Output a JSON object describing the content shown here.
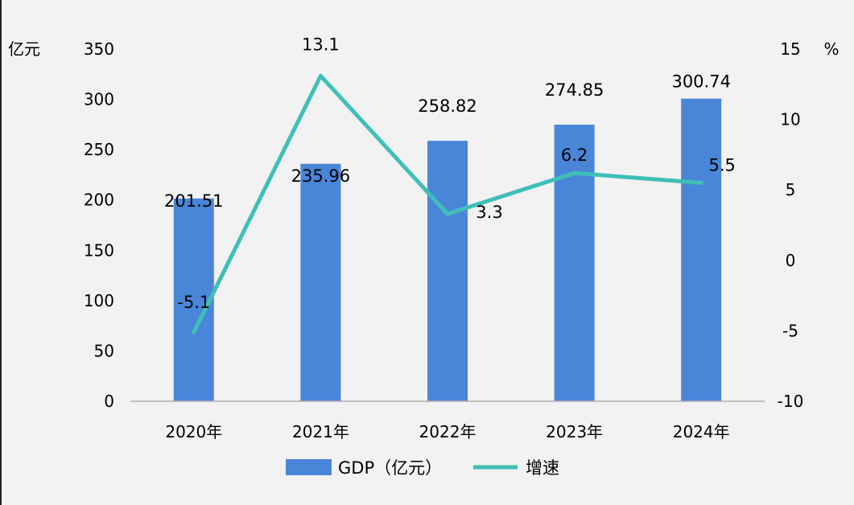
{
  "chart_data": {
    "type": "bar+line",
    "categories": [
      "2020年",
      "2021年",
      "2022年",
      "2023年",
      "2024年"
    ],
    "series": [
      {
        "name": "GDP（亿元）",
        "type": "bar",
        "axis": "left",
        "color": "#4a86d8",
        "values": [
          201.51,
          235.96,
          258.82,
          274.85,
          300.74
        ],
        "labels": [
          "201.51",
          "235.96",
          "258.82",
          "274.85",
          "300.74"
        ]
      },
      {
        "name": "增速",
        "type": "line",
        "axis": "right",
        "color": "#3fbfb8",
        "values": [
          -5.1,
          13.1,
          3.3,
          6.2,
          5.5
        ],
        "labels": [
          "-5.1",
          "13.1",
          "3.3",
          "6.2",
          "5.5"
        ]
      }
    ],
    "left_axis": {
      "unit_label": "亿元",
      "ylim": [
        0,
        350
      ],
      "ticks": [
        "0",
        "50",
        "100",
        "150",
        "200",
        "250",
        "300",
        "350"
      ]
    },
    "right_axis": {
      "unit_label": "%",
      "ylim": [
        -10,
        15
      ],
      "ticks": [
        "-10",
        "-5",
        "0",
        "5",
        "10",
        "15"
      ]
    },
    "grid": false,
    "legend_position": "bottom"
  }
}
